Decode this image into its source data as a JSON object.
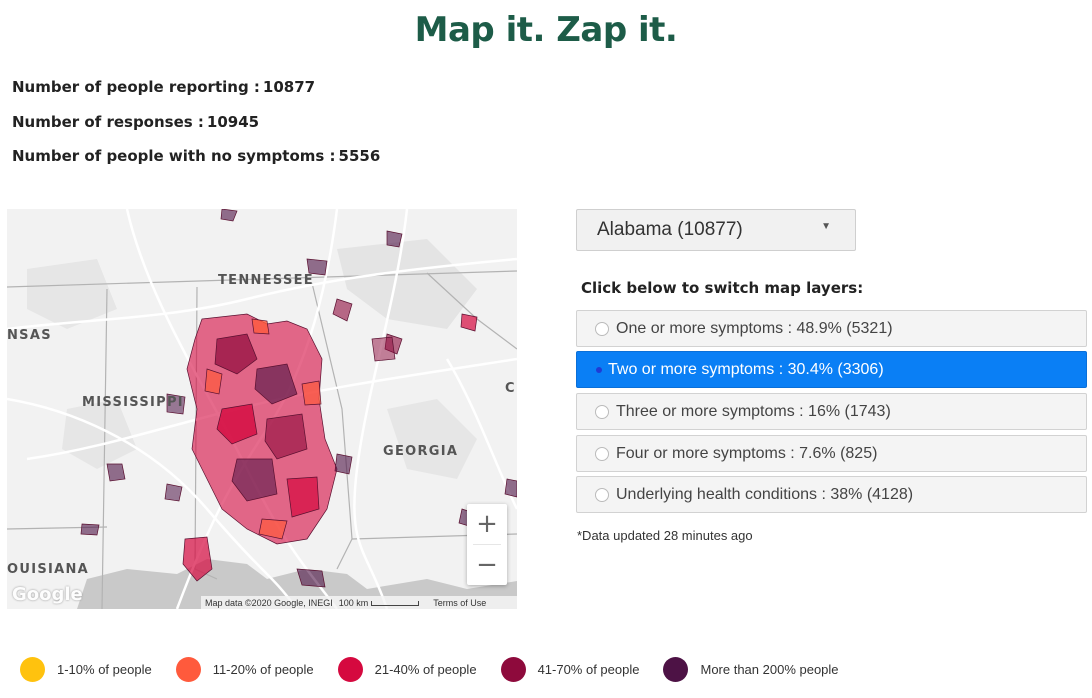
{
  "title": "Map it. Zap it.",
  "stats": [
    {
      "label": "Number of people reporting :",
      "value": "10877"
    },
    {
      "label": "Number of responses :",
      "value": "10945"
    },
    {
      "label": "Number of people with no symptoms :",
      "value": "5556"
    }
  ],
  "map": {
    "labels": {
      "tennessee": "TENNESSEE",
      "mississippi": "MISSISSIPPI",
      "georgia": "GEORGIA",
      "arkansas": "NSAS",
      "louisiana": "OUISIANA",
      "carolina": "C"
    },
    "zoom_in": "+",
    "zoom_out": "−",
    "google": "Google",
    "attribution": "Map data ©2020 Google, INEGI",
    "scale": "100 km",
    "terms": "Terms of Use"
  },
  "dropdown": {
    "selected": "Alabama (10877)"
  },
  "layers_title": "Click below to switch map layers:",
  "layers": [
    {
      "label": "One or more symptoms : 48.9% (5321)",
      "active": false
    },
    {
      "label": "Two or more symptoms : 30.4% (3306)",
      "active": true
    },
    {
      "label": "Three or more symptoms : 16% (1743)",
      "active": false
    },
    {
      "label": "Four or more symptoms : 7.6% (825)",
      "active": false
    },
    {
      "label": "Underlying health conditions : 38% (4128)",
      "active": false
    }
  ],
  "updated": "*Data updated 28 minutes ago",
  "legend": [
    {
      "label": "1-10% of people",
      "color": "#ffc20e"
    },
    {
      "label": "11-20% of people",
      "color": "#ff5a3c"
    },
    {
      "label": "21-40% of people",
      "color": "#d5093f"
    },
    {
      "label": "41-70% of people",
      "color": "#8e0a3c"
    },
    {
      "label": "More than 200% people",
      "color": "#4d1245"
    }
  ]
}
